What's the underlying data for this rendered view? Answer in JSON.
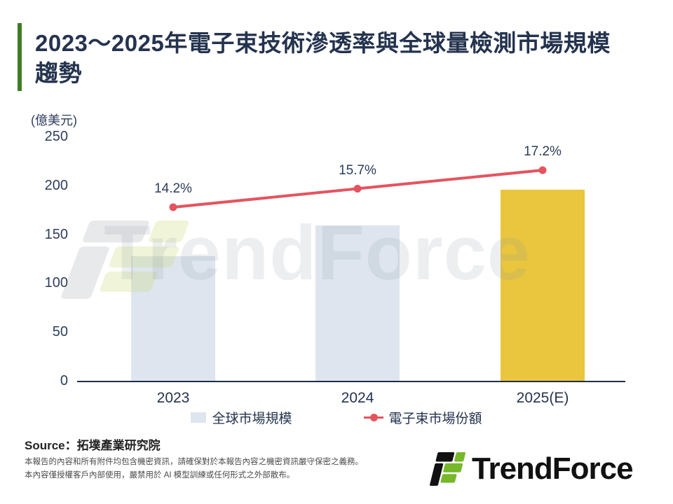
{
  "header": {
    "title_line1": "2023～2025年電子束技術滲透率與全球量檢測市場規模",
    "title_line2": "趨勢",
    "accent_color": "#3e7d23"
  },
  "chart_data": {
    "type": "bar+line",
    "title": "2023～2025年電子束技術滲透率與全球量檢測市場規模趨勢",
    "unit_label": "(億美元)",
    "categories": [
      "2023",
      "2024",
      "2025(E)"
    ],
    "yticks": [
      0,
      50,
      100,
      150,
      200,
      250
    ],
    "ylim": [
      0,
      250
    ],
    "grid": false,
    "legend_position": "bottom",
    "series": [
      {
        "name": "全球市場規模",
        "type": "bar",
        "unit": "億美元",
        "values": [
          128,
          160,
          196
        ],
        "colors": [
          "#dee5ef",
          "#dee5ef",
          "#e9c63d"
        ]
      },
      {
        "name": "電子束市場份額",
        "type": "line",
        "unit": "%",
        "values": [
          14.2,
          15.7,
          17.2
        ],
        "labels": [
          "14.2%",
          "15.7%",
          "17.2%"
        ],
        "color": "#e4545f"
      }
    ]
  },
  "legend": {
    "bar_label": "全球市場規模",
    "line_label": "電子束市場份額"
  },
  "source": {
    "label": "Source：拓墣產業研究院"
  },
  "disclaimer": {
    "line1": "本報告的內容和所有附件均包含機密資訊，請確保對於本報告內容之機密資訊嚴守保密之義務。",
    "line2": "本內容僅授權客戶內部使用，嚴禁用於 AI 模型訓練或任何形式之外部散布。"
  },
  "logo": {
    "text": "TrendForce",
    "green": "#76b82a",
    "black": "#111111"
  },
  "watermark": {
    "text": "TrendForce"
  }
}
